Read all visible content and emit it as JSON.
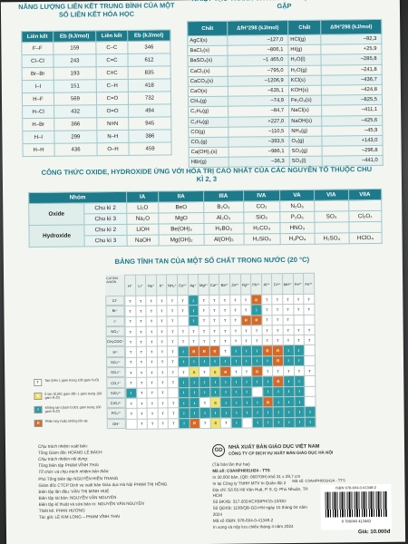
{
  "bond": {
    "title": "NĂNG LƯỢNG LIÊN KẾT TRUNG BÌNH CỦA MỘT SỐ LIÊN KẾT HÓA HỌC",
    "headers": [
      "Liên kết",
      "Eb (kJ/mol)",
      "Liên kết",
      "Eb (kJ/mol)"
    ],
    "rows": [
      [
        "F–F",
        "159",
        "C–C",
        "346"
      ],
      [
        "Cl–Cl",
        "243",
        "C=C",
        "612"
      ],
      [
        "Br–Br",
        "193",
        "C≡C",
        "835"
      ],
      [
        "I–I",
        "151",
        "C–H",
        "418"
      ],
      [
        "H–F",
        "569",
        "C=O",
        "732"
      ],
      [
        "H–Cl",
        "432",
        "O=O",
        "494"
      ],
      [
        "H–Br",
        "366",
        "N≡N",
        "945"
      ],
      [
        "H–I",
        "299",
        "N–H",
        "386"
      ],
      [
        "H–H",
        "436",
        "O–H",
        "459"
      ]
    ]
  },
  "thermo": {
    "title": "NHIỆT TẠO THÀNH CHUẨN CỦA MỘT SỐ CHẤT THƯỜNG GẶP",
    "headers": [
      "Chất",
      "ΔfH°298 (kJ/mol)",
      "Chất",
      "ΔfH°298 (kJ/mol)"
    ],
    "rows": [
      [
        "AgCl(s)",
        "–127,0",
        "HCl(g)",
        "–92,3"
      ],
      [
        "BaCl₂(s)",
        "–806,1",
        "HI(g)",
        "+25,9"
      ],
      [
        "BaSO₄(s)",
        "–1 465,0",
        "H₂O(l)",
        "–285,8"
      ],
      [
        "CaCl₂(s)",
        "–795,0",
        "H₂O(g)",
        "–241,8"
      ],
      [
        "CaCO₃(s)",
        "–1206,9",
        "KCl(s)",
        "–436,7"
      ],
      [
        "CaO(s)",
        "–635,1",
        "KOH(s)",
        "–424,8"
      ],
      [
        "CH₄(g)",
        "–74,9",
        "Fe₂O₃(s)",
        "–825,5"
      ],
      [
        "C₂H₆(g)",
        "–84,7",
        "NaCl(s)",
        "–411,1"
      ],
      [
        "C₂H₄(g)",
        "+227,0",
        "NaOH(s)",
        "–425,6"
      ],
      [
        "CO(g)",
        "–110,5",
        "NH₃(g)",
        "–45,9"
      ],
      [
        "CO₂(g)",
        "–393,5",
        "O₃(g)",
        "+143,0"
      ],
      [
        "Ca(OH)₂(s)",
        "–986,1",
        "SO₂(g)",
        "–296,8"
      ],
      [
        "HBr(g)",
        "–36,3",
        "SO₃(l)",
        "–441,0"
      ]
    ]
  },
  "oxide": {
    "title": "CÔNG THỨC OXIDE, HYDROXIDE ỨNG VỚI HÓA TRỊ CAO NHẤT CỦA CÁC NGUYÊN TỐ THUỘC CHU KÌ 2, 3",
    "headers": [
      "Nhóm",
      "",
      "IA",
      "IIA",
      "IIIA",
      "IVA",
      "VA",
      "VIA",
      "VIIA"
    ],
    "rows": [
      [
        "Oxide",
        "Chu kì 2",
        "Li₂O",
        "BeO",
        "B₂O₃",
        "CO₂",
        "N₂O₅",
        "",
        ""
      ],
      [
        "",
        "Chu kì 3",
        "Na₂O",
        "MgO",
        "Al₂O₃",
        "SiO₂",
        "P₂O₅",
        "SO₃",
        "Cl₂O₇"
      ],
      [
        "Hydroxide",
        "Chu kì 2",
        "LiOH",
        "Be(OH)₂",
        "H₃BO₃",
        "H₂CO₃",
        "HNO₃",
        "",
        ""
      ],
      [
        "",
        "Chu kì 3",
        "NaOH",
        "Mg(OH)₂",
        "Al(OH)₃",
        "H₂SiO₃",
        "H₃PO₄",
        "H₂SO₄",
        "HClO₄"
      ]
    ]
  },
  "solubility": {
    "title": "BẢNG TÍNH TAN CỦA MỘT SỐ CHẤT TRONG NƯỚC (20 °C)",
    "corner": "CATION ANION",
    "cations": [
      "H⁺",
      "Li⁺",
      "Na⁺",
      "K⁺",
      "NH₄⁺",
      "Cu²⁺",
      "Ag⁺",
      "Mg²⁺",
      "Ca²⁺",
      "Ba²⁺",
      "Zn²⁺",
      "Hg²⁺",
      "Pb²⁺",
      "Al³⁺",
      "Cr³⁺",
      "Mn²⁺",
      "Fe²⁺",
      "Fe³⁺"
    ],
    "anions": [
      "Cl⁻",
      "Br⁻",
      "I⁻",
      "NO₃⁻",
      "CH₃COO⁻",
      "S²⁻",
      "SO₃²⁻",
      "SO₄²⁻",
      "CO₃²⁻",
      "SiO₃²⁻",
      "CrO₄²⁻",
      "PO₄³⁻",
      "OH⁻"
    ],
    "rows": [
      "TTTTTTITTTTTRTTTTT",
      "TTTTTTITTTTTITTTTT",
      "TTTTTNITTTTRRTTTNN",
      "TTTTTTTTTTTTTTTTTT",
      "TTTTTTTTTTTTTTTTTT",
      "TTTTTIRRRTIIIRRIIN",
      "TTTTTIIIIIIIIIRIIN",
      "TTTTTTSTSRTTRTTTTT",
      "TTTTTIIIIIIIIIRIIN",
      "ITTTNIIIIIIINIIIIN",
      "TTTTTIITSIIIIRIIIN",
      "TTTTTIIIIIIIIIIIII",
      "NTTTTIRTSTINIIIIII"
    ],
    "legend": [
      {
        "code": "T",
        "text": "Tan (trên 1 gam trong 100 gam H₂O)"
      },
      {
        "code": "S",
        "text": "Ít tan (0,001 gam đến 1 gam trong 100 gam H₂O)"
      },
      {
        "code": "I",
        "text": "Không tan (dưới 0,001 gam trong 100 gam H₂O)"
      },
      {
        "code": "R",
        "text": "Phân hủy hoặc không tồn tại"
      }
    ],
    "colors": {
      "T": "#ffffff",
      "S": "#f2e36a",
      "I": "#2a9aa5",
      "R": "#d5692a"
    }
  },
  "credits": [
    "Chịu trách nhiệm xuất bản:",
    "Tổng Giám đốc HOÀNG LÊ BÁCH",
    "Chịu trách nhiệm nội dung:",
    "Tổng biên tập PHẠM VĨNH THÁI",
    "Tổ chức và chịu trách nhiệm bản thảo:",
    "Phó Tổng biên tập NGUYỄN HIẾN TRANG",
    "Giám đốc CTCP Dịch vụ xuất bản Giáo dục Hà Nội PHẠM THỊ HỒNG",
    "Biên tập lần đầu: VĂN THỊ MINH HUỆ",
    "Biên tập tái bản: NGUYỄN VĂN NGUYÊN",
    "Biên tập kĩ thuật và sửa bản in: NGUYỄN VĂN NGUYÊN",
    "Thiết kế: PHAN HƯƠNG",
    "Tác giả: LÊ KIM LONG – PHẠM VĨNH THÁI"
  ],
  "publisher": {
    "logo": "GD",
    "name": "NHÀ XUẤT BẢN GIÁO DỤC VIỆT NAM",
    "company": "CÔNG TY CP DỊCH VỤ XUẤT BẢN GIÁO DỤC HÀ NỘI",
    "imprint": [
      "(Tái bản lần thứ hai)",
      "Mã số: C0AHPH001H24 - TTS",
      "In 30.000 bản, (QĐ: 06070/H) khổ 31 x 29,7 cm",
      "In tại Công ty TNHH MTV In Quân đội 2",
      "Địa chỉ: Số 65 Hồ Văn Huê, P. 9, Q. Phú Nhuận, TP. HCM",
      "Số ĐKXB: 317-2024/CXBIPH/15-10/GD",
      "Số QĐXB: 1100/QĐ-GD-HN ngày 15 tháng 04 năm 2024",
      "Mã số ISBN: 978-604-0-41348-2",
      "In xong và nộp lưu chiểu tháng 4 năm 2024"
    ],
    "code_label": "Mã số: C0AHPH001H24 - TTS",
    "isbn": "ISBN 978-604-0-41348-2",
    "barcode_num": "9 786040 413482",
    "price": "Giá: 10.000đ"
  }
}
